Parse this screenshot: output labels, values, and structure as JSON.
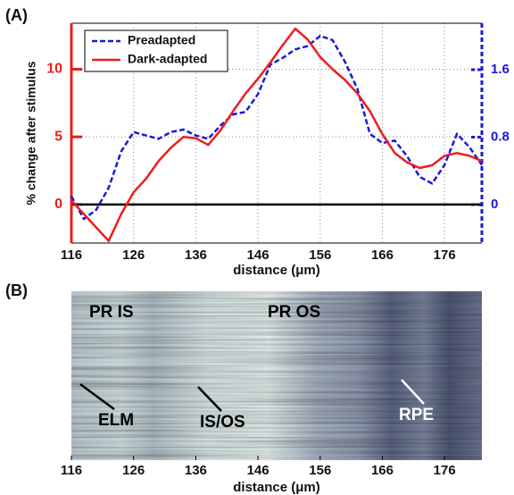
{
  "chart_data": [
    {
      "type": "line",
      "panel": "(A)",
      "ylabel": "% change after stimulus",
      "xlabel": "distance (μm)",
      "xlim": [
        116,
        182
      ],
      "xticks": [
        116,
        126,
        136,
        146,
        156,
        166,
        176
      ],
      "ylim": [
        -2.85,
        13.4
      ],
      "yticks": [
        0,
        5,
        10
      ],
      "y2lim": [
        -0.455,
        2.15
      ],
      "y2ticks": [
        0,
        0.8,
        1.6
      ],
      "grid": true,
      "legend": "upper left",
      "hline": 0,
      "x": [
        116,
        118,
        120,
        122,
        124,
        126,
        128,
        130,
        132,
        134,
        136,
        138,
        140,
        142,
        144,
        146,
        148,
        150,
        152,
        154,
        156,
        158,
        160,
        162,
        164,
        166,
        168,
        170,
        172,
        174,
        176,
        178,
        180,
        182
      ],
      "series": [
        {
          "name": "Preadapted",
          "color": "#1a1ad6",
          "dash": true,
          "axis": "y2",
          "values": [
            0.1,
            -0.17,
            -0.06,
            0.2,
            0.63,
            0.86,
            0.82,
            0.78,
            0.86,
            0.89,
            0.82,
            0.78,
            0.94,
            1.07,
            1.1,
            1.31,
            1.66,
            1.74,
            1.84,
            1.88,
            2.0,
            1.95,
            1.69,
            1.37,
            0.84,
            0.73,
            0.76,
            0.57,
            0.33,
            0.25,
            0.47,
            0.84,
            0.68,
            0.47
          ]
        },
        {
          "name": "Dark-adapted",
          "color": "#ee1c1c",
          "dash": false,
          "values": [
            0.3,
            -0.7,
            -1.7,
            -2.7,
            -0.7,
            0.9,
            1.9,
            3.2,
            4.2,
            5.0,
            4.9,
            4.4,
            5.5,
            6.9,
            8.2,
            9.3,
            10.5,
            11.8,
            13.0,
            12.2,
            10.9,
            10.0,
            9.2,
            8.2,
            6.9,
            5.2,
            3.8,
            3.1,
            2.7,
            2.9,
            3.6,
            3.8,
            3.6,
            3.2
          ]
        }
      ]
    },
    {
      "type": "image",
      "panel": "(B)",
      "xlabel": "distance (μm)",
      "xlim": [
        116,
        182
      ],
      "xticks": [
        116,
        126,
        136,
        146,
        156,
        166,
        176
      ],
      "annotations": [
        "PR IS",
        "PR OS",
        "ELM",
        "IS/OS",
        "RPE"
      ]
    }
  ]
}
